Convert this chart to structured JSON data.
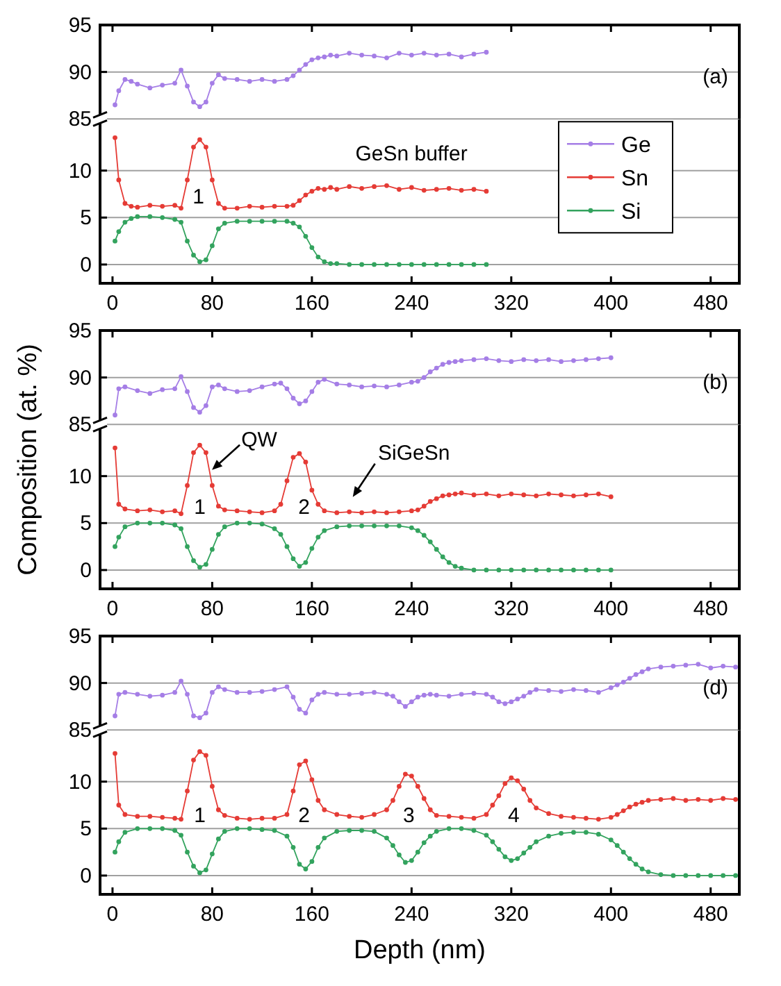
{
  "chart_data": [
    {
      "type": "line",
      "title": "(a)",
      "xlim": [
        -10,
        503
      ],
      "xticks": [
        0,
        80,
        160,
        240,
        320,
        400,
        480
      ],
      "ylim": [
        85,
        95
      ],
      "yticks": [
        85,
        90,
        95
      ],
      "grid": "y",
      "marker": "circle",
      "tick_labels": "y",
      "x": [
        2,
        5,
        10,
        15,
        20,
        30,
        40,
        50,
        55,
        60,
        65,
        70,
        75,
        80,
        85,
        90,
        100,
        110,
        120,
        130,
        140,
        145,
        150,
        155,
        160,
        165,
        170,
        175,
        180,
        190,
        200,
        210,
        220,
        230,
        240,
        250,
        260,
        270,
        280,
        290,
        300
      ],
      "series": [
        {
          "name": "Ge",
          "color": "#a57ee6",
          "values": [
            86.5,
            88,
            89.2,
            89,
            88.7,
            88.3,
            88.6,
            88.8,
            90.2,
            88.5,
            86.8,
            86.3,
            86.8,
            88.8,
            89.7,
            89.3,
            89.2,
            89,
            89.2,
            89,
            89.2,
            89.6,
            90.2,
            90.8,
            91.3,
            91.5,
            91.6,
            91.8,
            91.7,
            92,
            91.8,
            91.7,
            91.5,
            92,
            91.8,
            92,
            91.8,
            91.9,
            91.6,
            91.9,
            92.1
          ]
        }
      ]
    },
    {
      "type": "line",
      "xlim": [
        -10,
        503
      ],
      "xticks": [
        0,
        80,
        160,
        240,
        320,
        400,
        480
      ],
      "ylim": [
        -2,
        15.5
      ],
      "yticks": [
        0,
        5,
        10
      ],
      "grid": "y",
      "marker": "circle",
      "legend": "right",
      "x": [
        2,
        5,
        10,
        15,
        20,
        30,
        40,
        50,
        55,
        60,
        65,
        70,
        75,
        80,
        85,
        90,
        100,
        110,
        120,
        130,
        140,
        145,
        150,
        155,
        160,
        165,
        170,
        175,
        180,
        190,
        200,
        210,
        220,
        230,
        240,
        250,
        260,
        270,
        280,
        290,
        300
      ],
      "series": [
        {
          "name": "Sn",
          "color": "#e53b35",
          "values": [
            13.5,
            9,
            6.5,
            6.2,
            6.1,
            6.3,
            6.2,
            6.3,
            6,
            9,
            12.5,
            13.3,
            12.5,
            9,
            6.5,
            6,
            6,
            6.2,
            6.1,
            6.2,
            6.2,
            6.3,
            6.8,
            7.4,
            7.8,
            8.1,
            8,
            8.2,
            8,
            8.3,
            8.1,
            8.3,
            8.4,
            8,
            8.2,
            7.9,
            8,
            8.1,
            7.9,
            8,
            7.8
          ]
        },
        {
          "name": "Si",
          "color": "#33a35e",
          "values": [
            2.5,
            3.5,
            4.5,
            4.9,
            5.1,
            5.1,
            5,
            4.8,
            4.5,
            2.5,
            1,
            0.3,
            0.5,
            2,
            3.8,
            4.4,
            4.6,
            4.6,
            4.6,
            4.6,
            4.6,
            4.4,
            4,
            3,
            1.8,
            0.8,
            0.3,
            0.1,
            0.1,
            0,
            0,
            0,
            0,
            0,
            0,
            0,
            0,
            0,
            0,
            0,
            0
          ]
        }
      ],
      "annotations": [
        "1",
        "GeSn buffer"
      ]
    },
    {
      "type": "line",
      "title": "(b)",
      "xlim": [
        -10,
        503
      ],
      "xticks": [
        0,
        80,
        160,
        240,
        320,
        400,
        480
      ],
      "ylim": [
        85,
        95
      ],
      "yticks": [
        85,
        90,
        95
      ],
      "grid": "y",
      "marker": "circle",
      "tick_labels": "y",
      "x": [
        2,
        5,
        10,
        20,
        30,
        40,
        50,
        55,
        60,
        65,
        70,
        75,
        80,
        85,
        90,
        100,
        110,
        120,
        130,
        135,
        140,
        145,
        150,
        155,
        160,
        165,
        170,
        180,
        190,
        200,
        210,
        220,
        230,
        240,
        245,
        250,
        255,
        260,
        265,
        270,
        275,
        280,
        290,
        300,
        310,
        320,
        330,
        340,
        350,
        360,
        370,
        380,
        390,
        400
      ],
      "series": [
        {
          "color": "#a57ee6",
          "values": [
            86,
            88.8,
            89,
            88.6,
            88.3,
            88.7,
            88.8,
            90.1,
            88.5,
            86.8,
            86.3,
            87,
            89,
            89.2,
            88.8,
            88.5,
            88.6,
            89,
            89.3,
            89.4,
            88.8,
            87.8,
            87.2,
            87.5,
            88.5,
            89.5,
            89.8,
            89.3,
            89.2,
            89,
            89.1,
            89,
            89.2,
            89.5,
            89.6,
            90,
            90.6,
            91,
            91.4,
            91.6,
            91.7,
            91.8,
            91.9,
            92,
            91.8,
            91.7,
            91.9,
            91.8,
            91.9,
            91.7,
            91.8,
            91.9,
            92,
            92.1
          ]
        }
      ]
    },
    {
      "type": "line",
      "ylabel": "Composition (at. %)",
      "xlim": [
        -10,
        503
      ],
      "xticks": [
        0,
        80,
        160,
        240,
        320,
        400,
        480
      ],
      "ylim": [
        -2,
        15.5
      ],
      "yticks": [
        0,
        5,
        10
      ],
      "grid": "y",
      "marker": "circle",
      "x": [
        2,
        5,
        10,
        20,
        30,
        40,
        50,
        55,
        60,
        65,
        70,
        75,
        80,
        85,
        90,
        100,
        110,
        120,
        130,
        135,
        140,
        145,
        150,
        155,
        160,
        165,
        170,
        180,
        190,
        200,
        210,
        220,
        230,
        240,
        245,
        250,
        255,
        260,
        265,
        270,
        275,
        280,
        290,
        300,
        310,
        320,
        330,
        340,
        350,
        360,
        370,
        380,
        390,
        400
      ],
      "series": [
        {
          "color": "#e53b35",
          "values": [
            13,
            7,
            6.5,
            6.3,
            6.4,
            6.2,
            6.3,
            6,
            9,
            12.5,
            13.3,
            12.5,
            9,
            6.8,
            6.4,
            6.3,
            6.2,
            6.1,
            6.3,
            7,
            9.5,
            12,
            12.4,
            11.5,
            8.5,
            7,
            6.3,
            6.1,
            6.2,
            6.1,
            6.2,
            6.1,
            6.2,
            6.3,
            6.4,
            6.8,
            7.3,
            7.6,
            7.9,
            8,
            8.1,
            8.2,
            8,
            8.1,
            7.9,
            8.1,
            8,
            7.9,
            8.1,
            8,
            7.9,
            8,
            8.1,
            7.8
          ]
        },
        {
          "color": "#33a35e",
          "values": [
            2.5,
            3.5,
            4.6,
            5,
            5,
            5,
            4.8,
            4.4,
            2.5,
            1,
            0.3,
            0.6,
            2.2,
            3.8,
            4.6,
            5,
            5,
            4.9,
            4.4,
            3.8,
            2.5,
            1.2,
            0.4,
            0.8,
            2.3,
            3.5,
            4.2,
            4.6,
            4.7,
            4.7,
            4.7,
            4.7,
            4.7,
            4.5,
            4.2,
            3.7,
            3,
            2.2,
            1.4,
            0.8,
            0.4,
            0.2,
            0,
            0,
            0,
            0,
            0,
            0,
            0,
            0,
            0,
            0,
            0,
            0
          ]
        }
      ],
      "annotations": [
        "QW",
        "1",
        "2",
        "SiGeSn"
      ]
    },
    {
      "type": "line",
      "title": "(d)",
      "xlim": [
        -10,
        503
      ],
      "xticks": [
        0,
        80,
        160,
        240,
        320,
        400,
        480
      ],
      "ylim": [
        85,
        95
      ],
      "yticks": [
        85,
        90,
        95
      ],
      "grid": "y",
      "marker": "circle",
      "tick_labels": "y",
      "x": [
        2,
        5,
        10,
        20,
        30,
        40,
        50,
        55,
        60,
        65,
        70,
        75,
        80,
        85,
        90,
        100,
        110,
        120,
        130,
        140,
        145,
        150,
        155,
        160,
        165,
        170,
        180,
        190,
        200,
        210,
        220,
        225,
        230,
        235,
        240,
        245,
        250,
        255,
        260,
        270,
        280,
        290,
        300,
        305,
        310,
        315,
        320,
        325,
        330,
        335,
        340,
        350,
        360,
        370,
        380,
        390,
        400,
        405,
        410,
        415,
        420,
        425,
        430,
        440,
        450,
        460,
        470,
        480,
        490,
        500
      ],
      "series": [
        {
          "color": "#a57ee6",
          "values": [
            86.5,
            88.8,
            89,
            88.8,
            88.6,
            88.7,
            89,
            90.2,
            88.8,
            86.5,
            86.3,
            86.8,
            89,
            89.6,
            89.3,
            89,
            89,
            89.1,
            89.3,
            89.6,
            88.5,
            87.2,
            86.8,
            88.2,
            88.8,
            89,
            88.8,
            88.8,
            88.9,
            89,
            88.8,
            88.6,
            88,
            87.5,
            88,
            88.5,
            88.7,
            88.8,
            88.7,
            88.6,
            88.8,
            88.9,
            88.8,
            88.5,
            88,
            87.8,
            88,
            88.3,
            88.6,
            89,
            89.3,
            89.2,
            89.1,
            89.3,
            89.2,
            89,
            89.5,
            89.8,
            90.1,
            90.5,
            90.9,
            91.2,
            91.5,
            91.7,
            91.8,
            91.9,
            92,
            91.6,
            91.8,
            91.7
          ]
        }
      ]
    },
    {
      "type": "line",
      "xlabel": "Depth (nm)",
      "xlim": [
        -10,
        503
      ],
      "xticks": [
        0,
        80,
        160,
        240,
        320,
        400,
        480
      ],
      "ylim": [
        -2,
        15.5
      ],
      "yticks": [
        0,
        5,
        10
      ],
      "grid": "y",
      "marker": "circle",
      "x": [
        2,
        5,
        10,
        20,
        30,
        40,
        50,
        55,
        60,
        65,
        70,
        75,
        80,
        85,
        90,
        100,
        110,
        120,
        130,
        140,
        145,
        150,
        155,
        160,
        165,
        170,
        180,
        190,
        200,
        210,
        220,
        225,
        230,
        235,
        240,
        245,
        250,
        255,
        260,
        270,
        280,
        290,
        300,
        305,
        310,
        315,
        320,
        325,
        330,
        335,
        340,
        350,
        360,
        370,
        380,
        390,
        400,
        405,
        410,
        415,
        420,
        425,
        430,
        440,
        450,
        460,
        470,
        480,
        490,
        500
      ],
      "series": [
        {
          "color": "#e53b35",
          "values": [
            13,
            7.5,
            6.5,
            6.3,
            6.3,
            6.2,
            6.1,
            6,
            9,
            12.3,
            13.2,
            12.8,
            9.5,
            7,
            6.4,
            6.1,
            6,
            6.1,
            6.1,
            6.5,
            9,
            11.8,
            12.2,
            10.2,
            8,
            7,
            6.5,
            6.3,
            6.2,
            6.5,
            7,
            8,
            9.5,
            10.8,
            10.6,
            9.5,
            8.2,
            7,
            6.4,
            6.3,
            6.2,
            6.1,
            6.5,
            7.5,
            8.5,
            9.8,
            10.4,
            10.1,
            9.2,
            8,
            7.2,
            6.6,
            6.3,
            6.2,
            6.1,
            6,
            6.2,
            6.5,
            6.9,
            7.3,
            7.6,
            7.8,
            8,
            8.1,
            8.2,
            8,
            8.1,
            8,
            8.2,
            8.1
          ]
        },
        {
          "color": "#33a35e",
          "values": [
            2.5,
            3.6,
            4.6,
            5,
            5,
            5,
            4.8,
            4.3,
            2.5,
            1,
            0.3,
            0.6,
            2.3,
            3.9,
            4.7,
            5,
            5,
            4.9,
            4.8,
            4.2,
            3,
            1.2,
            0.7,
            1.5,
            3,
            4,
            4.7,
            4.8,
            4.8,
            4.7,
            4,
            3.2,
            2.2,
            1.4,
            1.6,
            2.5,
            3.5,
            4.2,
            4.7,
            5,
            5,
            4.8,
            4.3,
            3.6,
            2.8,
            2,
            1.6,
            1.8,
            2.4,
            3,
            3.6,
            4.2,
            4.5,
            4.6,
            4.6,
            4.4,
            3.8,
            3.2,
            2.5,
            1.8,
            1.2,
            0.7,
            0.4,
            0.1,
            0,
            0,
            0,
            0,
            0,
            0
          ]
        }
      ],
      "annotations": [
        "1",
        "2",
        "3",
        "4"
      ]
    }
  ]
}
